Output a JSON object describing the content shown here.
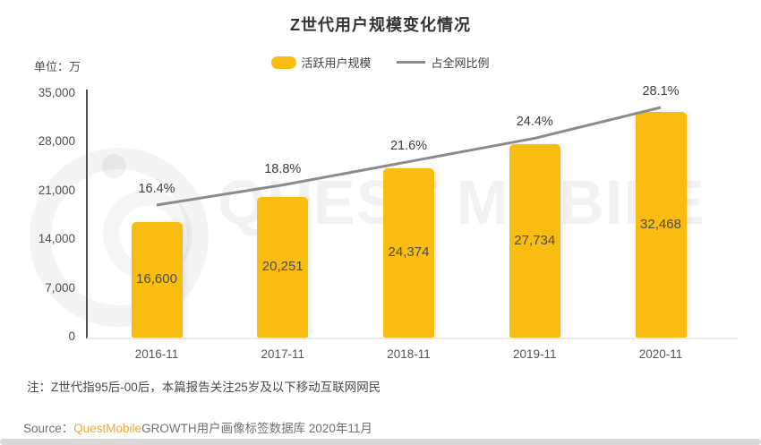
{
  "title": "Z世代用户规模变化情况",
  "unit_label": "单位：万",
  "legend": {
    "bar_label": "活跃用户规模",
    "line_label": "占全网比例"
  },
  "watermark_text": "QUEST MOBILE",
  "note": "注：Z世代指95后-00后，本篇报告关注25岁及以下移动互联网网民",
  "source": {
    "prefix": "Source：",
    "brand": "QuestMobile",
    "suffix": "GROWTH用户画像标签数据库 2020年11月"
  },
  "colors": {
    "bar": "#F9BD12",
    "line": "#8B8B8B",
    "brand_orange": "#EFA53B"
  },
  "chart_data": {
    "type": "bar",
    "categories": [
      "2016-11",
      "2017-11",
      "2018-11",
      "2019-11",
      "2020-11"
    ],
    "series": [
      {
        "name": "活跃用户规模",
        "type": "bar",
        "unit": "万",
        "values": [
          16600,
          20251,
          24374,
          27734,
          32468
        ]
      },
      {
        "name": "占全网比例",
        "type": "line",
        "unit": "%",
        "values": [
          16.4,
          18.8,
          21.6,
          24.4,
          28.1
        ]
      }
    ],
    "title": "Z世代用户规模变化情况",
    "xlabel": "",
    "ylabel": "单位：万",
    "ylim": [
      0,
      35000
    ],
    "yticks": [
      0,
      7000,
      14000,
      21000,
      28000,
      35000
    ],
    "grid": false,
    "legend_position": "top-center"
  }
}
